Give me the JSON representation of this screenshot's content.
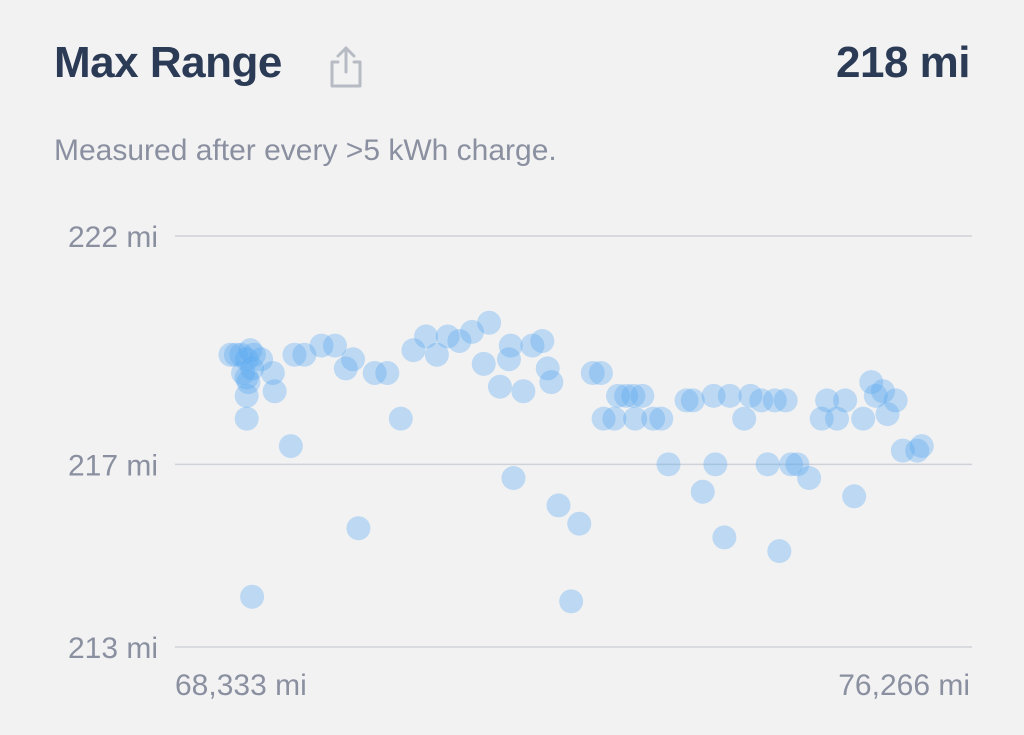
{
  "header": {
    "title": "Max Range",
    "value": "218 mi",
    "share_icon": "share-icon",
    "subtitle": "Measured after every >5 kWh charge."
  },
  "colors": {
    "title": "#2b3a55",
    "muted": "#8a90a0",
    "grid": "#cfd2d8",
    "point": "#5aa8f0",
    "background": "#f2f2f3"
  },
  "chart_data": {
    "type": "scatter",
    "title": "Max Range",
    "subtitle": "Measured after every >5 kWh charge.",
    "xlabel": "",
    "ylabel": "",
    "ylim": [
      213,
      222
    ],
    "xlim": [
      68333,
      76266
    ],
    "y_ticks": [
      {
        "value": 222,
        "label": "222 mi"
      },
      {
        "value": 217,
        "label": "217 mi"
      },
      {
        "value": 213,
        "label": "213 mi"
      }
    ],
    "x_ticks": [
      {
        "value": 68333,
        "label": "68,333 mi"
      },
      {
        "value": 76266,
        "label": "76,266 mi"
      }
    ],
    "grid": true,
    "series": [
      {
        "points": [
          [
            68560,
            219.4
          ],
          [
            68620,
            219.4
          ],
          [
            68680,
            219.4
          ],
          [
            68740,
            219.3
          ],
          [
            68780,
            219.5
          ],
          [
            68820,
            219.4
          ],
          [
            68700,
            219.0
          ],
          [
            68740,
            218.9
          ],
          [
            68760,
            218.8
          ],
          [
            68800,
            219.1
          ],
          [
            68740,
            218.5
          ],
          [
            68740,
            218.0
          ],
          [
            68800,
            214.1
          ],
          [
            68900,
            219.3
          ],
          [
            69050,
            218.6
          ],
          [
            69030,
            219.0
          ],
          [
            69230,
            217.4
          ],
          [
            69270,
            219.4
          ],
          [
            69380,
            219.4
          ],
          [
            69570,
            219.6
          ],
          [
            69720,
            219.6
          ],
          [
            69840,
            219.1
          ],
          [
            69920,
            219.3
          ],
          [
            69980,
            215.6
          ],
          [
            70160,
            219.0
          ],
          [
            70300,
            219.0
          ],
          [
            70450,
            218.0
          ],
          [
            70590,
            219.5
          ],
          [
            70730,
            219.8
          ],
          [
            70850,
            219.4
          ],
          [
            70970,
            219.8
          ],
          [
            71100,
            219.7
          ],
          [
            71240,
            219.9
          ],
          [
            71370,
            219.2
          ],
          [
            71430,
            220.1
          ],
          [
            71550,
            218.7
          ],
          [
            71650,
            219.3
          ],
          [
            71670,
            219.6
          ],
          [
            71700,
            216.7
          ],
          [
            71810,
            218.6
          ],
          [
            71910,
            219.6
          ],
          [
            72020,
            219.7
          ],
          [
            72080,
            219.1
          ],
          [
            72120,
            218.8
          ],
          [
            72200,
            216.1
          ],
          [
            72340,
            214.0
          ],
          [
            72430,
            215.7
          ],
          [
            72580,
            219.0
          ],
          [
            72670,
            219.0
          ],
          [
            72700,
            218.0
          ],
          [
            72820,
            218.0
          ],
          [
            72860,
            218.5
          ],
          [
            72950,
            218.5
          ],
          [
            73030,
            218.5
          ],
          [
            73050,
            218.0
          ],
          [
            73130,
            218.5
          ],
          [
            73250,
            218.0
          ],
          [
            73340,
            218.0
          ],
          [
            73420,
            217.0
          ],
          [
            73620,
            218.4
          ],
          [
            73690,
            218.4
          ],
          [
            73800,
            216.4
          ],
          [
            73920,
            218.5
          ],
          [
            73940,
            217.0
          ],
          [
            74040,
            215.4
          ],
          [
            74100,
            218.5
          ],
          [
            74260,
            218.0
          ],
          [
            74330,
            218.5
          ],
          [
            74450,
            218.4
          ],
          [
            74520,
            217.0
          ],
          [
            74600,
            218.4
          ],
          [
            74650,
            215.1
          ],
          [
            74720,
            218.4
          ],
          [
            74780,
            217.0
          ],
          [
            74850,
            217.0
          ],
          [
            74980,
            216.7
          ],
          [
            75120,
            218.0
          ],
          [
            75180,
            218.4
          ],
          [
            75290,
            218.0
          ],
          [
            75380,
            218.4
          ],
          [
            75480,
            216.3
          ],
          [
            75580,
            218.0
          ],
          [
            75670,
            218.8
          ],
          [
            75720,
            218.5
          ],
          [
            75800,
            218.6
          ],
          [
            75850,
            218.1
          ],
          [
            75940,
            218.4
          ],
          [
            76020,
            217.3
          ],
          [
            76180,
            217.3
          ],
          [
            76230,
            217.4
          ]
        ]
      }
    ]
  }
}
